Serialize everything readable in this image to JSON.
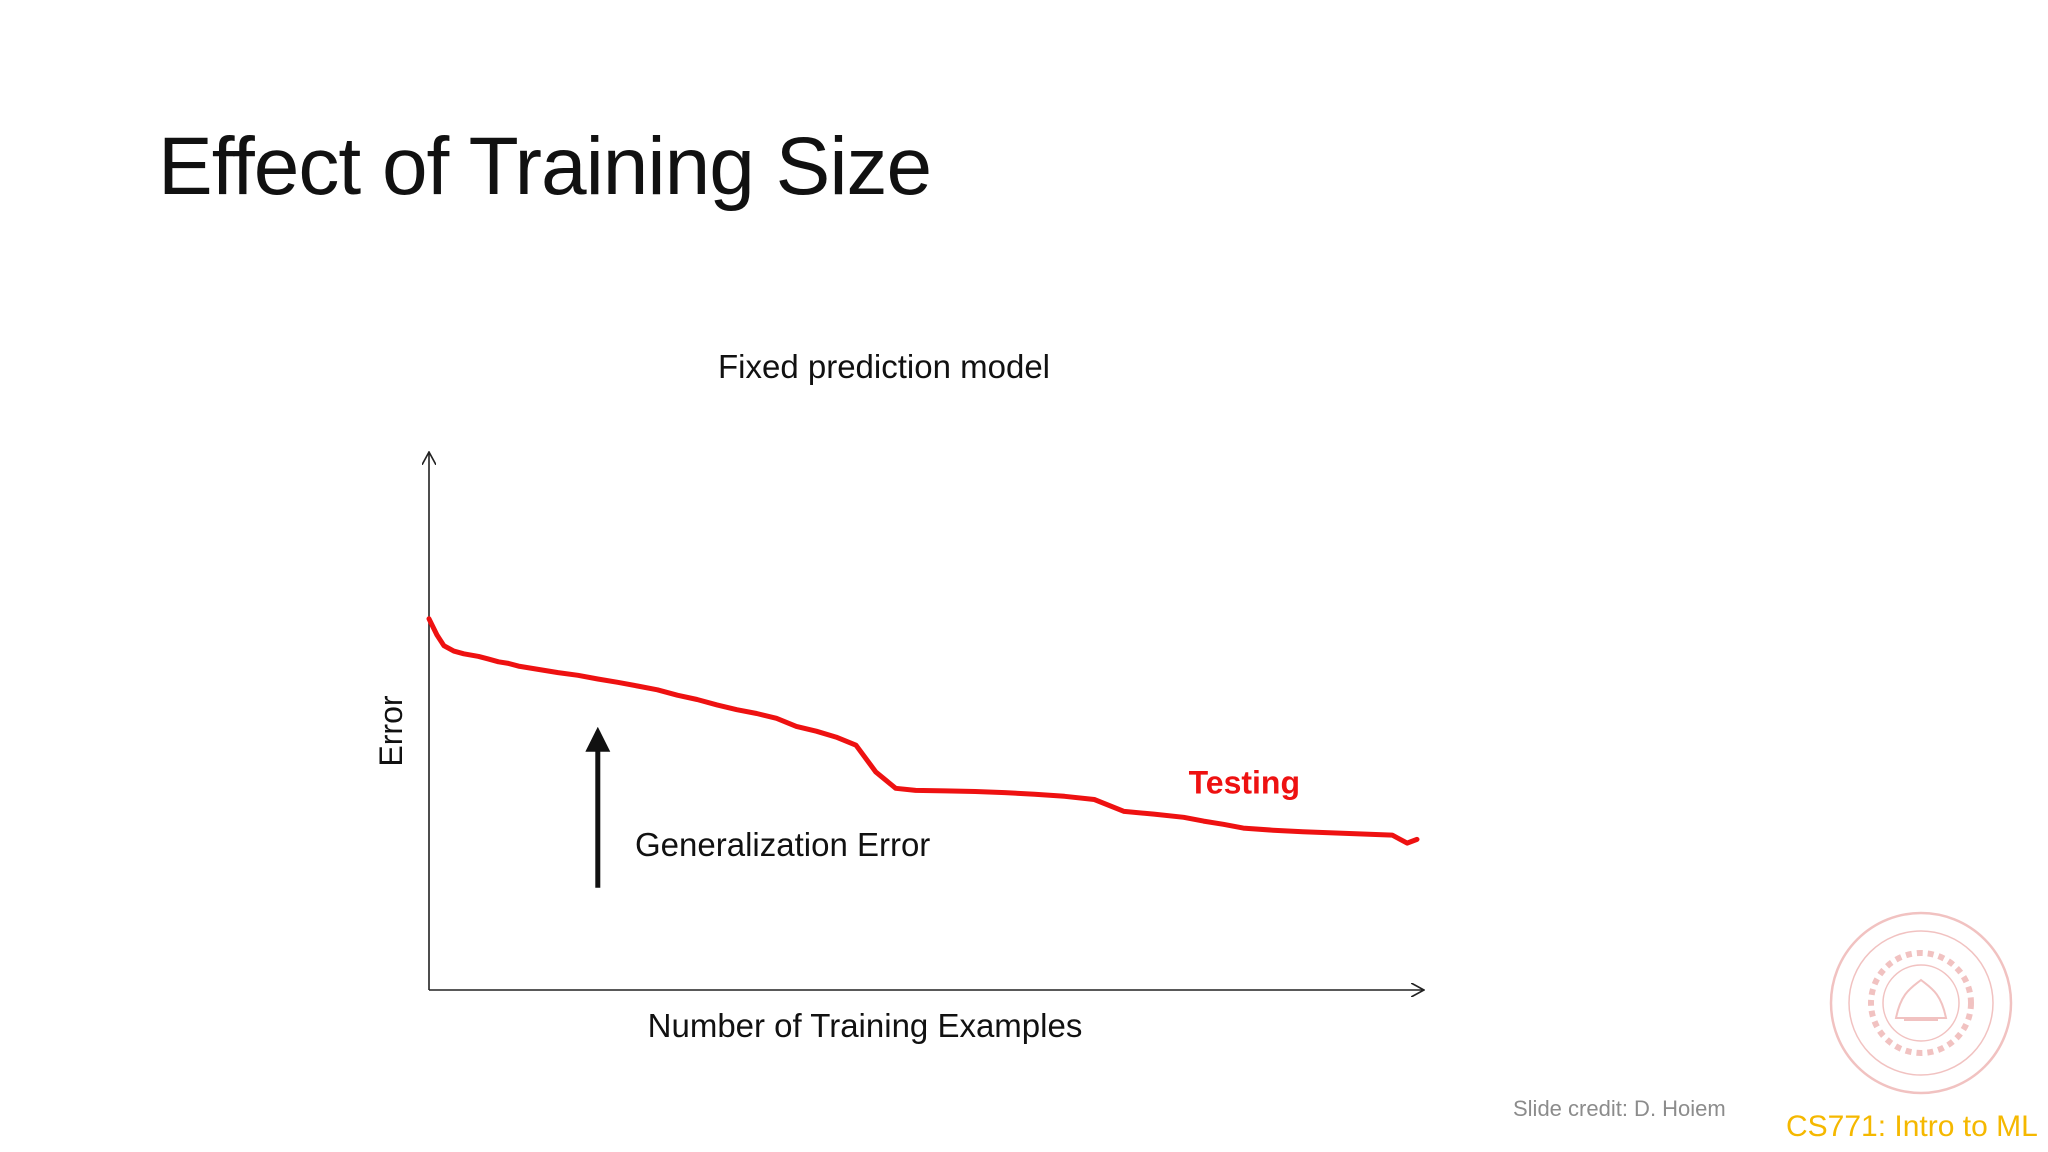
{
  "slide": {
    "title": "Effect of Training Size",
    "credit": "Slide credit: D. Hoiem",
    "course": "CS771: Intro to ML"
  },
  "colors": {
    "testing_curve": "#ee1111",
    "text": "#111111",
    "axis": "#222222",
    "course_label": "#f5b800",
    "credit_label": "#8c8c8c",
    "seal": "#d9534f"
  },
  "chart_data": {
    "type": "line",
    "title": "Fixed prediction model",
    "xlabel": "Number of Training Examples",
    "ylabel": "Error",
    "xlim": [
      0,
      100
    ],
    "ylim": [
      0,
      100
    ],
    "grid": false,
    "axes_ticks": false,
    "series": [
      {
        "name": "Testing",
        "color": "#ee1111",
        "x": [
          0,
          0.8,
          1.5,
          2.5,
          3.5,
          5,
          6,
          7,
          8,
          9,
          11,
          13,
          15,
          17,
          19,
          21,
          23,
          25,
          27,
          29,
          31,
          33,
          35,
          37,
          39,
          41,
          43,
          45,
          47,
          49,
          52,
          55,
          58,
          61,
          64,
          67,
          70,
          73,
          76,
          78,
          80,
          82,
          85,
          88,
          91,
          94,
          97,
          98.5,
          99.5
        ],
        "values": [
          69,
          66,
          64,
          63,
          62.5,
          62,
          61.5,
          61,
          60.7,
          60.2,
          59.6,
          59,
          58.5,
          57.8,
          57.2,
          56.5,
          55.8,
          54.8,
          54,
          53,
          52.1,
          51.4,
          50.5,
          49,
          48.1,
          47,
          45.5,
          40.5,
          37.5,
          37.1,
          37,
          36.9,
          36.7,
          36.4,
          36,
          35.4,
          33.2,
          32.7,
          32.1,
          31.4,
          30.8,
          30.1,
          29.7,
          29.4,
          29.2,
          29.0,
          28.8,
          27.3,
          28.0
        ]
      }
    ],
    "annotations": [
      {
        "text": "Generalization Error",
        "type": "arrow-up",
        "arrow_x": 17,
        "arrow_from_y": 19,
        "arrow_to_y": 48
      }
    ]
  }
}
